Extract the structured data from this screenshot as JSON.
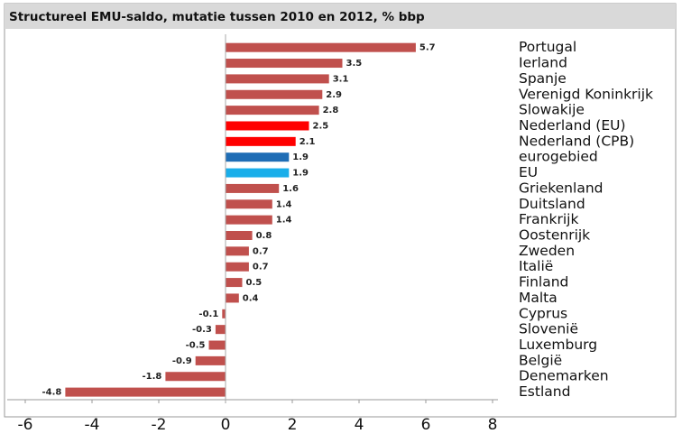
{
  "chart_data": {
    "type": "bar",
    "orientation": "horizontal",
    "title": "Structureel EMU-saldo, mutatie tussen 2010 en 2012, % bbp",
    "categories": [
      "Portugal",
      "Ierland",
      "Spanje",
      "Verenigd Koninkrijk",
      "Slowakije",
      "Nederland (EU)",
      "Nederland (CPB)",
      "eurogebied",
      "EU",
      "Griekenland",
      "Duitsland",
      "Frankrijk",
      "Oostenrijk",
      "Zweden",
      "Italië",
      "Finland",
      "Malta",
      "Cyprus",
      "Slovenië",
      "Luxemburg",
      "België",
      "Denemarken",
      "Estland"
    ],
    "values": [
      5.7,
      3.5,
      3.1,
      2.9,
      2.8,
      2.5,
      2.1,
      1.9,
      1.9,
      1.6,
      1.4,
      1.4,
      0.8,
      0.7,
      0.7,
      0.5,
      0.4,
      -0.1,
      -0.3,
      -0.5,
      -0.9,
      -1.8,
      -4.8
    ],
    "colors": [
      "#c0504d",
      "#c0504d",
      "#c0504d",
      "#c0504d",
      "#c0504d",
      "#ff0000",
      "#ff0000",
      "#1f6db5",
      "#19aeea",
      "#c0504d",
      "#c0504d",
      "#c0504d",
      "#c0504d",
      "#c0504d",
      "#c0504d",
      "#c0504d",
      "#c0504d",
      "#c0504d",
      "#c0504d",
      "#c0504d",
      "#c0504d",
      "#c0504d",
      "#c0504d"
    ],
    "xlim": [
      -6,
      8
    ],
    "xticks": [
      -6,
      -4,
      -2,
      0,
      2,
      4,
      6,
      8
    ]
  }
}
